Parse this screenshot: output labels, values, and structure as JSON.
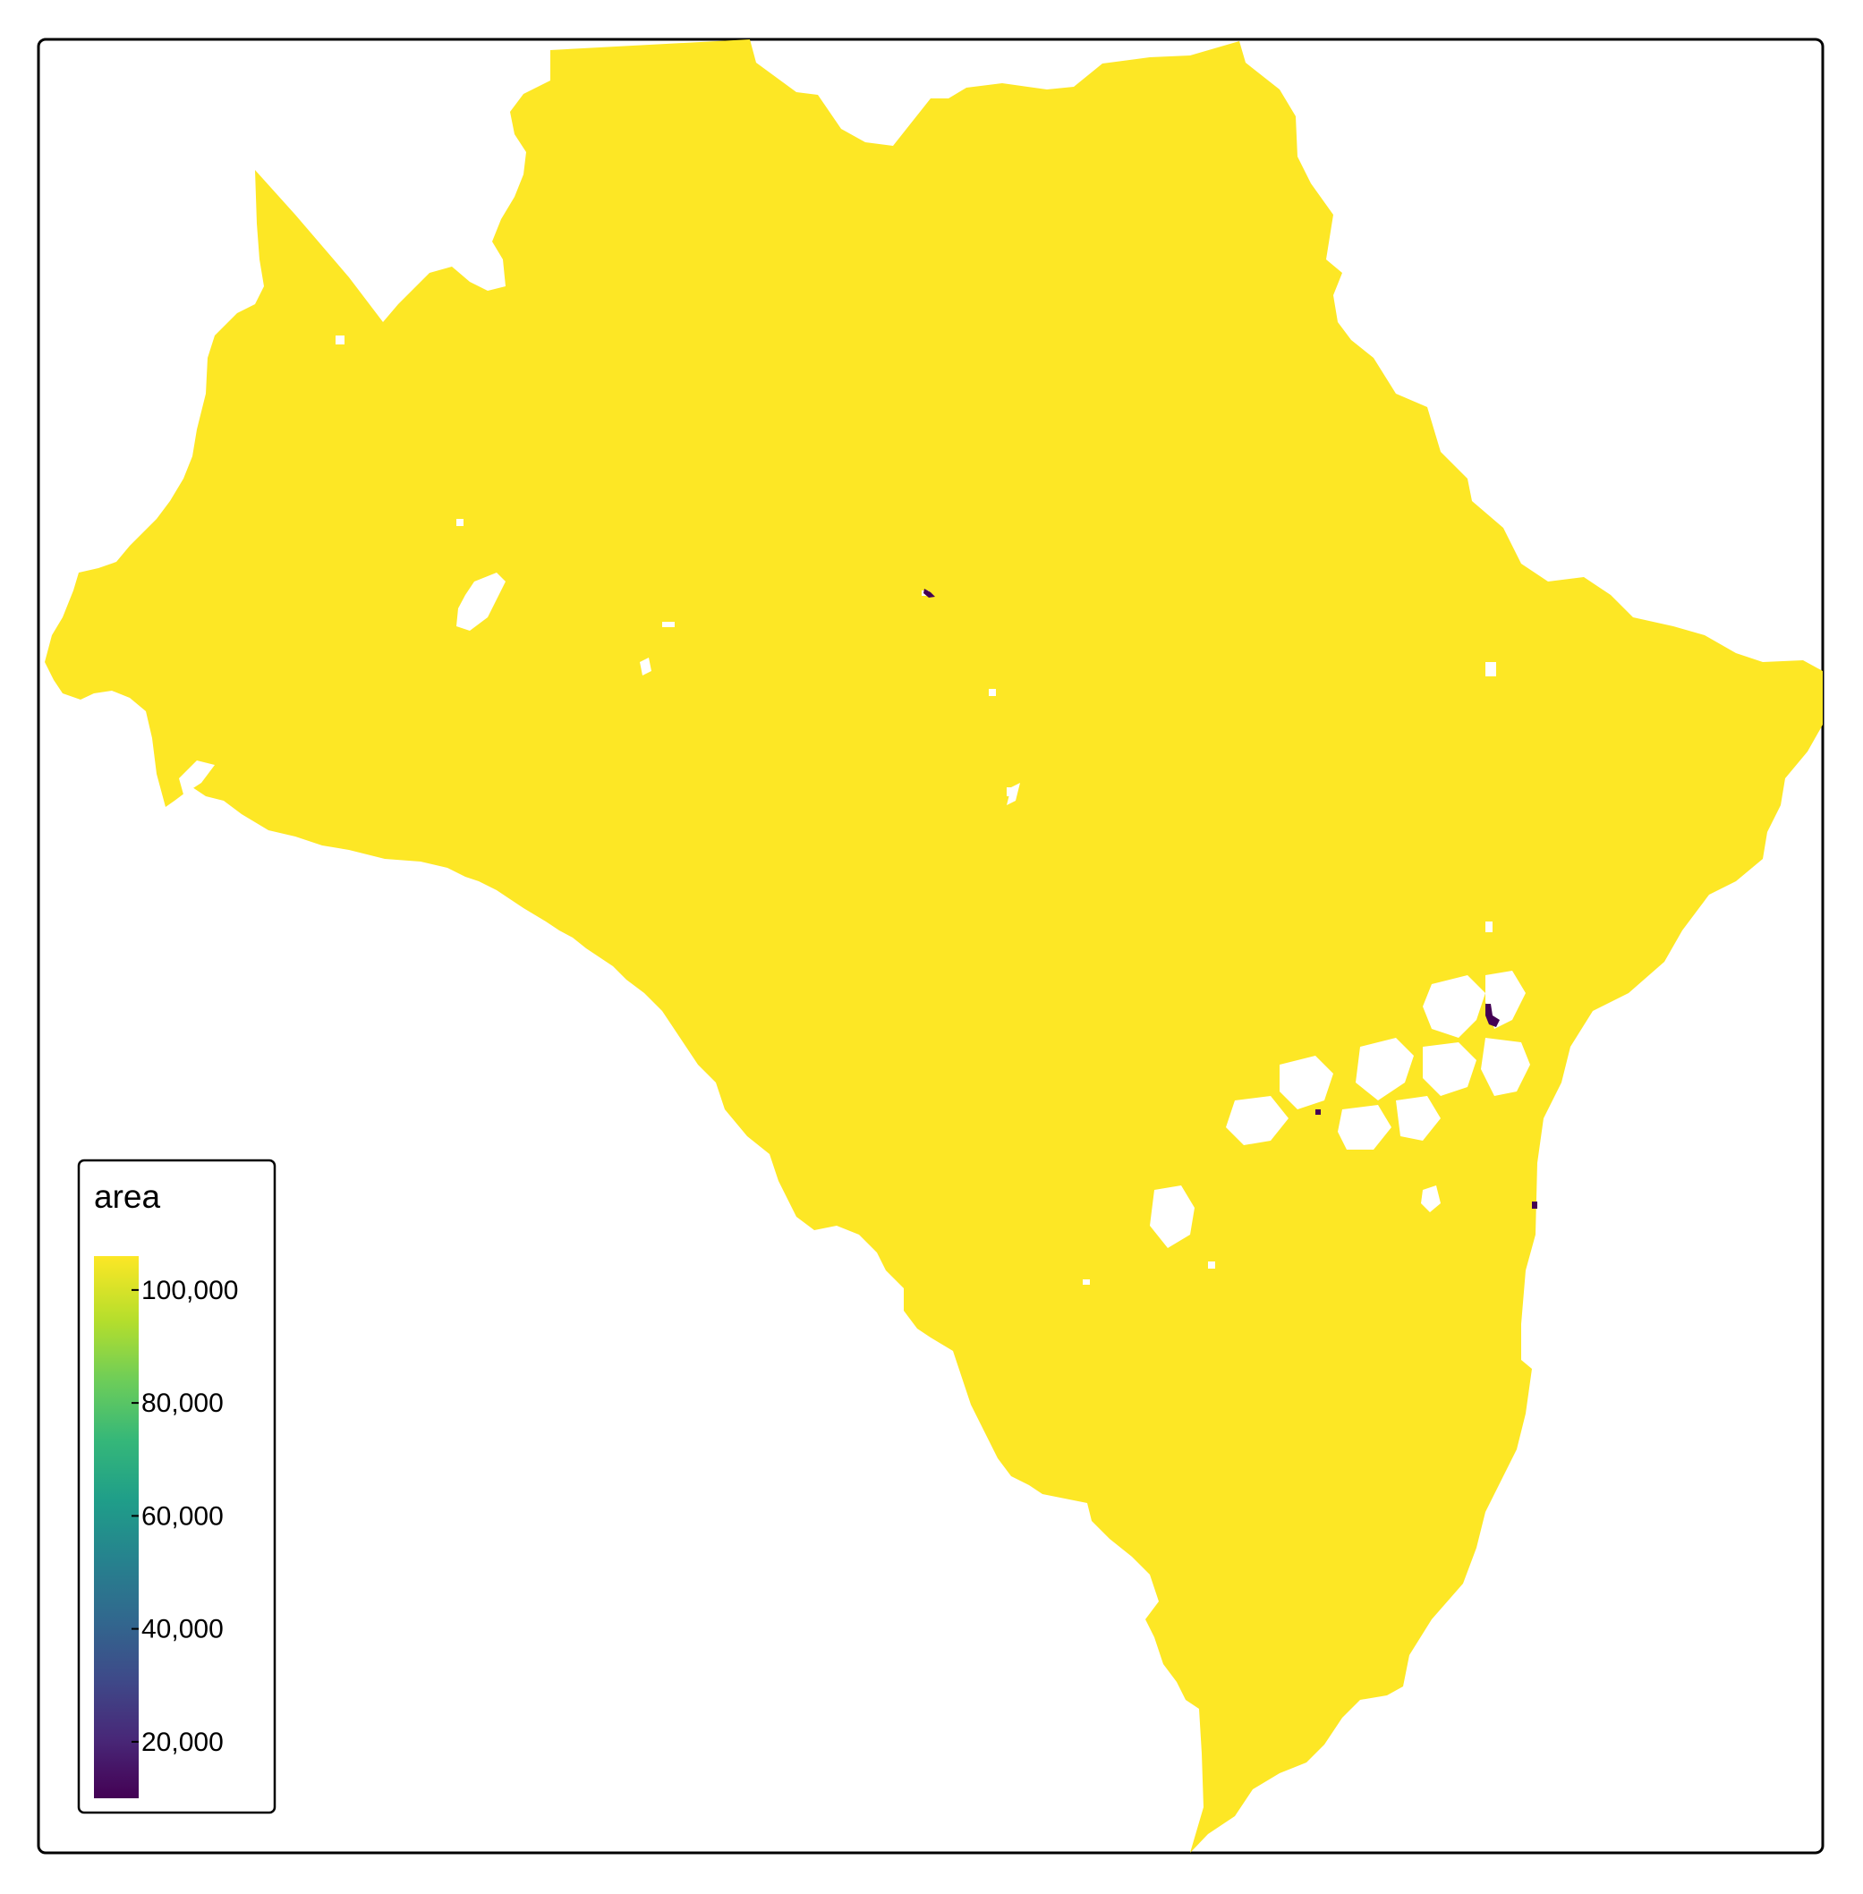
{
  "map": {
    "fill_color_main": "#FDE725",
    "low_color": "#440154",
    "background": "#ffffff"
  },
  "legend": {
    "title": "area",
    "palette": "viridis",
    "min": 10000,
    "max": 106000,
    "ticks": [
      {
        "value": 100000,
        "label": "100,000"
      },
      {
        "value": 80000,
        "label": "80,000"
      },
      {
        "value": 60000,
        "label": "60,000"
      },
      {
        "value": 40000,
        "label": "40,000"
      },
      {
        "value": 20000,
        "label": "20,000"
      }
    ],
    "colors": [
      "#440154",
      "#482878",
      "#3E4A89",
      "#31688E",
      "#26828E",
      "#1F9E89",
      "#35B779",
      "#6DCD59",
      "#B4DE2C",
      "#FDE725"
    ]
  }
}
